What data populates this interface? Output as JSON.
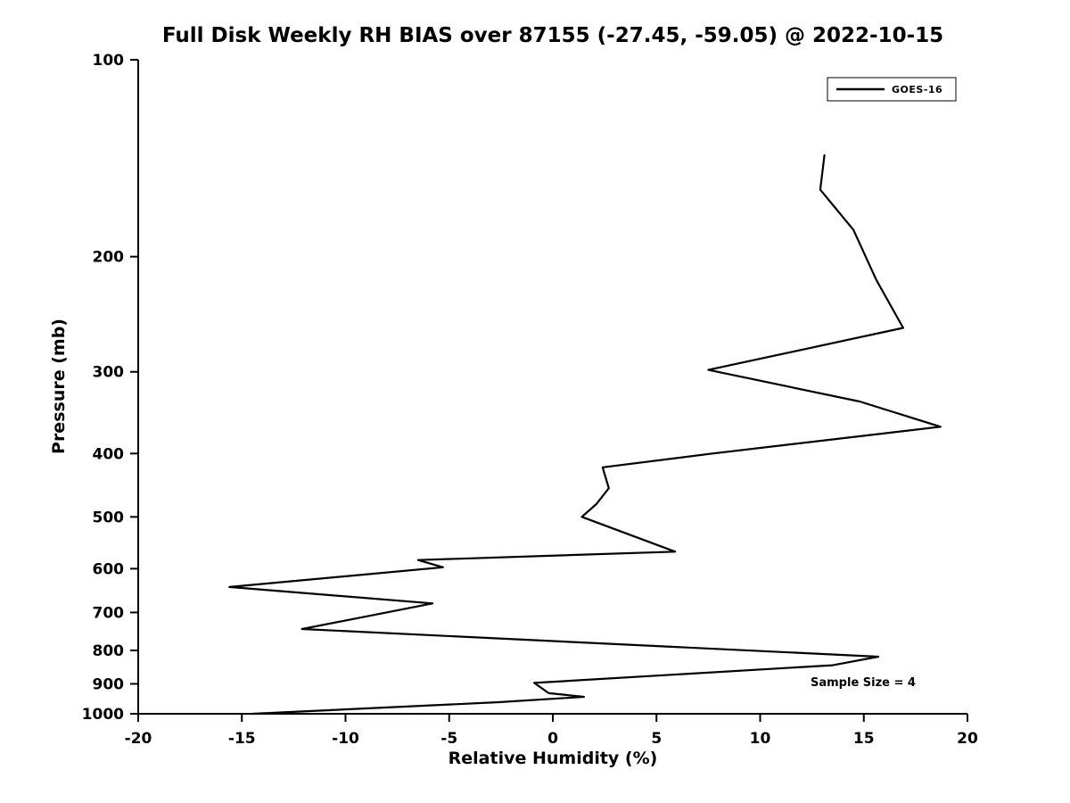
{
  "chart_data": {
    "type": "line",
    "title": "Full Disk Weekly RH BIAS over 87155 (-27.45, -59.05) @ 2022-10-15",
    "xlabel": "Relative Humidity (%)",
    "ylabel": "Pressure (mb)",
    "xlim": [
      -20,
      20
    ],
    "ylim": [
      100,
      1000
    ],
    "yscale": "log",
    "y_inverted": true,
    "grid": false,
    "xticks": [
      -20,
      -15,
      -10,
      -5,
      0,
      5,
      10,
      15,
      20
    ],
    "yticks": [
      100,
      200,
      300,
      400,
      500,
      600,
      700,
      800,
      900,
      1000
    ],
    "line_color": "#000000",
    "background_color": "#ffffff",
    "legend_position": "top-right",
    "annotation": "Sample Size = 4",
    "series": [
      {
        "name": "GOES-16",
        "points": [
          [
            13.1,
            140
          ],
          [
            12.9,
            158
          ],
          [
            14.5,
            182
          ],
          [
            15.6,
            217
          ],
          [
            16.9,
            257
          ],
          [
            7.5,
            298
          ],
          [
            14.8,
            333
          ],
          [
            18.7,
            364
          ],
          [
            7.7,
            400
          ],
          [
            2.4,
            420
          ],
          [
            2.7,
            452
          ],
          [
            2.1,
            478
          ],
          [
            1.4,
            500
          ],
          [
            5.9,
            565
          ],
          [
            -6.5,
            582
          ],
          [
            -5.3,
            597
          ],
          [
            -15.6,
            640
          ],
          [
            -5.8,
            678
          ],
          [
            -12.1,
            742
          ],
          [
            15.7,
            818
          ],
          [
            13.5,
            843
          ],
          [
            -0.9,
            897
          ],
          [
            -0.2,
            930
          ],
          [
            1.5,
            942
          ],
          [
            -2.6,
            960
          ],
          [
            -14.5,
            1000
          ]
        ]
      }
    ]
  }
}
